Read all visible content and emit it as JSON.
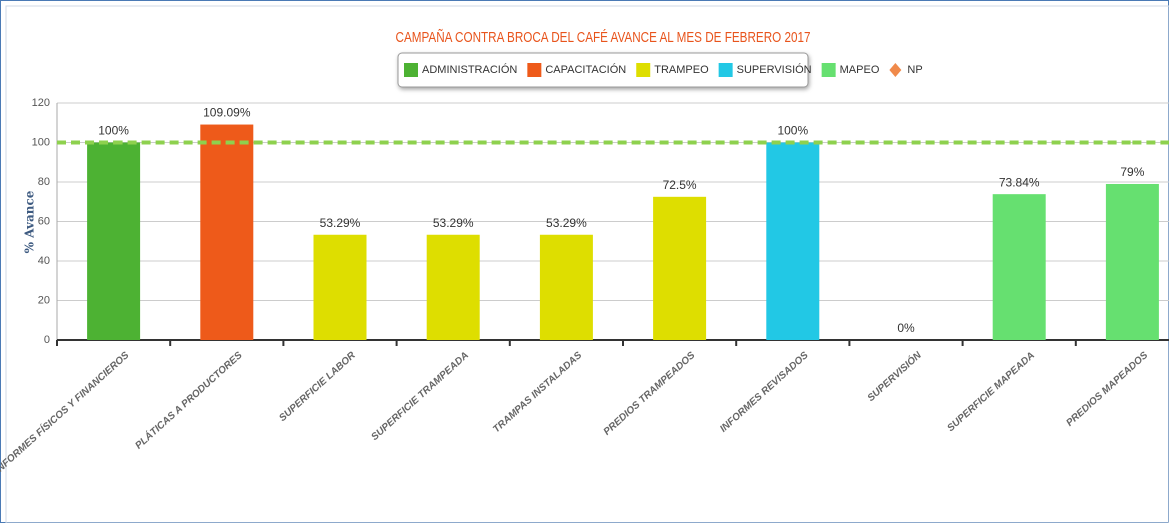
{
  "chart_data": {
    "type": "bar",
    "title": "CAMPAÑA CONTRA BROCA DEL CAFÉ AVANCE AL MES DE FEBRERO 2017",
    "ylabel": "% Avance",
    "categories": [
      "INFORMES FÍSICOS Y FINANCIEROS",
      "PLÁTICAS A PRODUCTORES",
      "SUPERFICIE LABOR",
      "SUPERFICIE TRAMPEADA",
      "TRAMPAS INSTALADAS",
      "PREDIOS TRAMPEADOS",
      "INFORMES REVISADOS",
      "SUPERVISIÓN",
      "SUPERFICIE MAPEADA",
      "PREDIOS MAPEADOS"
    ],
    "series": [
      {
        "name": "ADMINISTRACIÓN",
        "color": "#4db233",
        "values": [
          100,
          null,
          null,
          null,
          null,
          null,
          null,
          null,
          null,
          null
        ],
        "value_labels": [
          "100%",
          null,
          null,
          null,
          null,
          null,
          null,
          null,
          null,
          null
        ]
      },
      {
        "name": "CAPACITACIÓN",
        "color": "#ee5a1a",
        "values": [
          null,
          109.09,
          null,
          null,
          null,
          null,
          null,
          null,
          null,
          null
        ],
        "value_labels": [
          null,
          "109.09%",
          null,
          null,
          null,
          null,
          null,
          null,
          null,
          null
        ]
      },
      {
        "name": "TRAMPEO",
        "color": "#dede00",
        "values": [
          null,
          null,
          53.29,
          53.29,
          53.29,
          72.5,
          null,
          null,
          null,
          null
        ],
        "value_labels": [
          null,
          null,
          "53.29%",
          "53.29%",
          "53.29%",
          "72.5%",
          null,
          null,
          null,
          null
        ]
      },
      {
        "name": "SUPERVISIÓN",
        "color": "#22c8e5",
        "values": [
          null,
          null,
          null,
          null,
          null,
          null,
          100,
          0,
          null,
          null
        ],
        "value_labels": [
          null,
          null,
          null,
          null,
          null,
          null,
          "100%",
          "0%",
          null,
          null
        ]
      },
      {
        "name": "MAPEO",
        "color": "#66e070",
        "values": [
          null,
          null,
          null,
          null,
          null,
          null,
          null,
          null,
          73.84,
          79
        ],
        "value_labels": [
          null,
          null,
          null,
          null,
          null,
          null,
          null,
          null,
          "73.84%",
          "79%"
        ]
      },
      {
        "name": "NP",
        "type": "line",
        "color": "#f08a4b",
        "line_color": "#8ed14e",
        "values": [
          100,
          100,
          100,
          100,
          100,
          100,
          100,
          100,
          100,
          100
        ]
      }
    ],
    "ylim": [
      0,
      120
    ],
    "yticks": [
      0,
      20,
      40,
      60,
      80,
      100,
      120
    ],
    "grid": true
  }
}
